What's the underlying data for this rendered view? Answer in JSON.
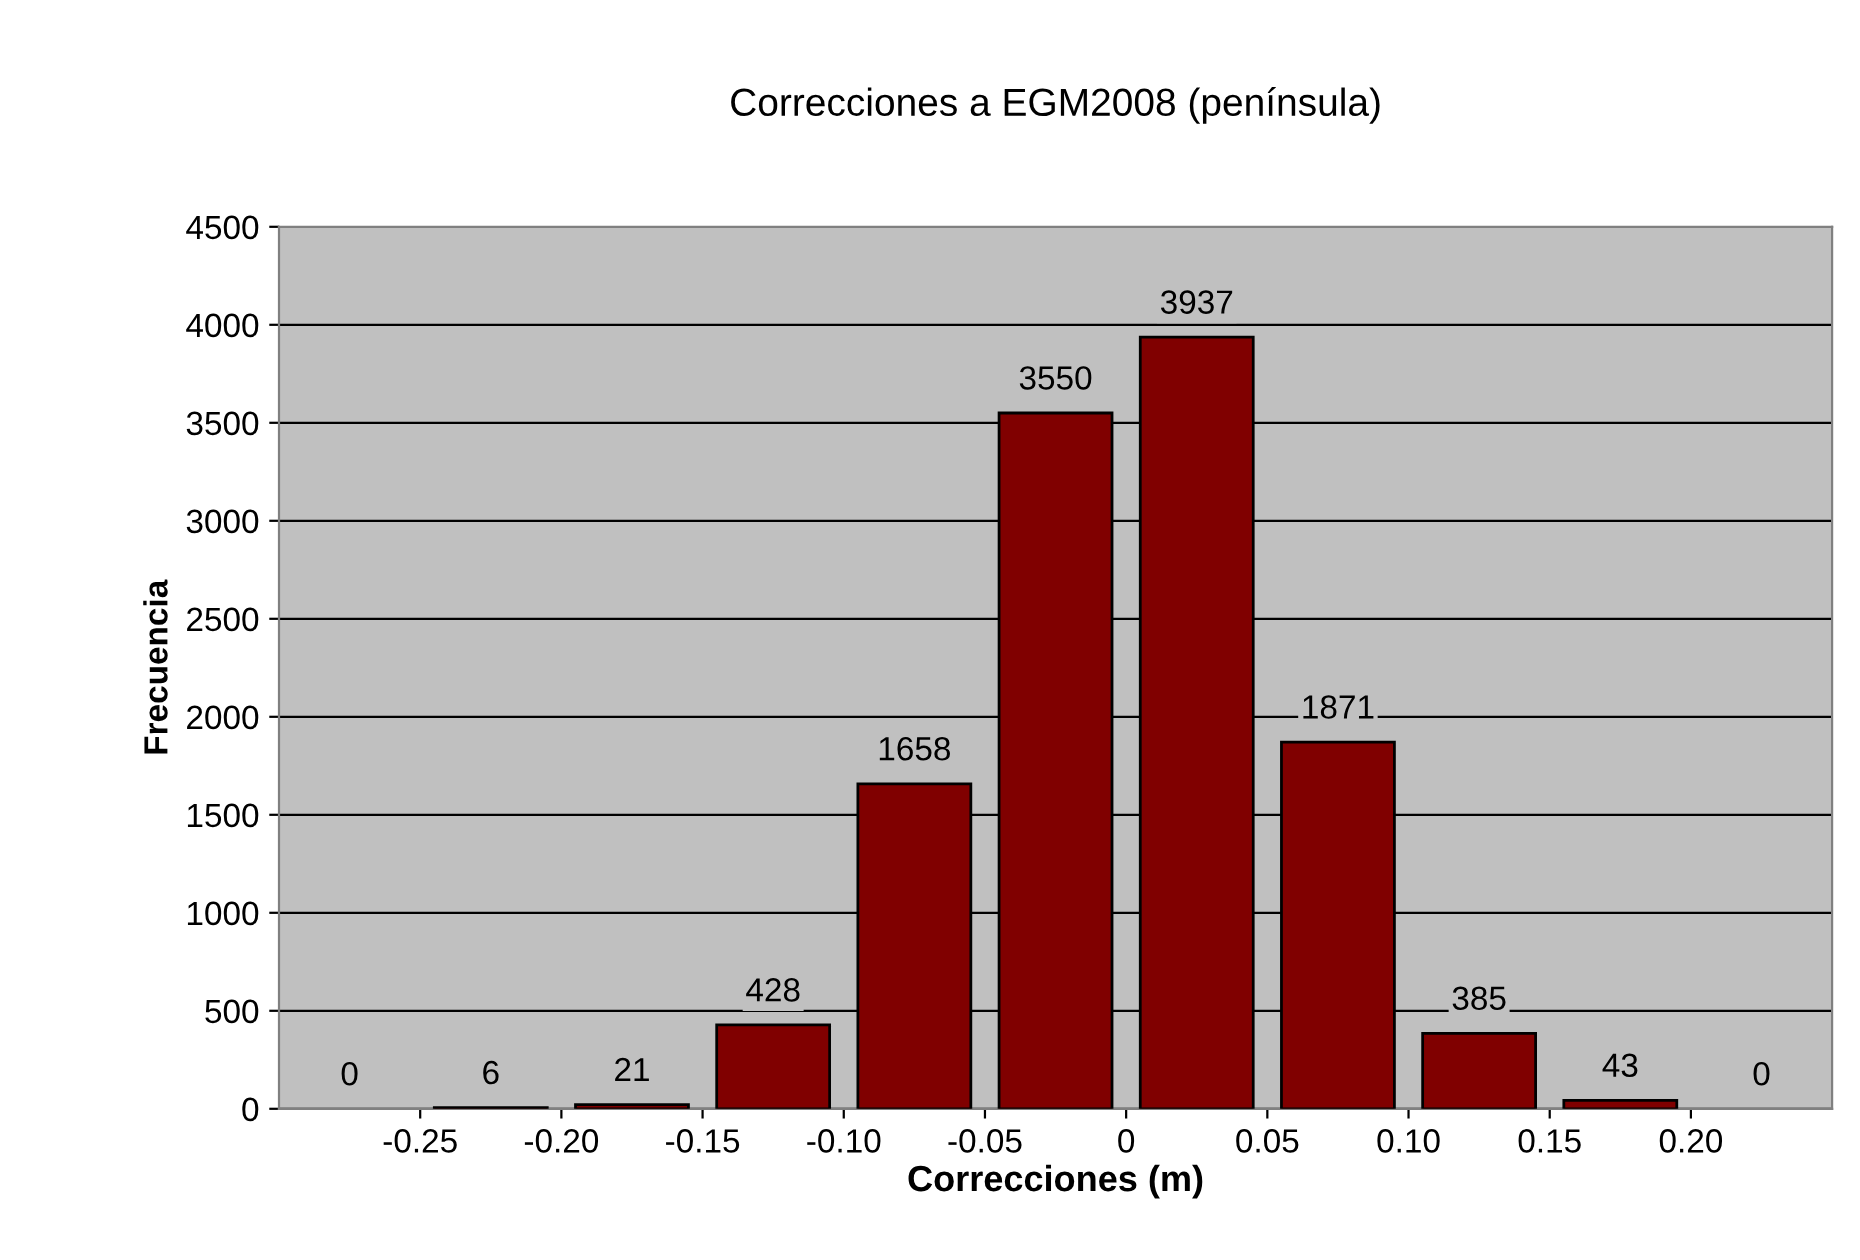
{
  "chart_data": {
    "type": "histogram",
    "title": "Correcciones a EGM2008 (península)",
    "xlabel": "Correcciones (m)",
    "ylabel": "Frecuencia",
    "bins": [
      -0.3,
      -0.25,
      -0.2,
      -0.15,
      -0.1,
      -0.05,
      0,
      0.05,
      0.1,
      0.15,
      0.2,
      0.25
    ],
    "values": [
      0,
      6,
      21,
      428,
      1658,
      3550,
      3937,
      1871,
      385,
      43,
      0
    ],
    "color": "#800000",
    "xlim": [
      -0.3,
      0.25
    ],
    "xticks": [
      -0.25,
      {
        "value": -0.2,
        "label": "-0.20"
      },
      -0.15,
      {
        "value": -0.1,
        "label": "-0.10"
      },
      -0.05,
      0,
      0.05,
      {
        "value": 0.1,
        "label": "0.10"
      },
      0.15,
      {
        "value": 0.2,
        "label": "0.20"
      }
    ],
    "ylim": [
      0,
      4500
    ],
    "yticks": [
      0,
      500,
      1000,
      1500,
      2000,
      2500,
      3000,
      3500,
      4000,
      4500
    ],
    "grid": "y",
    "data_labels": true,
    "legend": false
  }
}
